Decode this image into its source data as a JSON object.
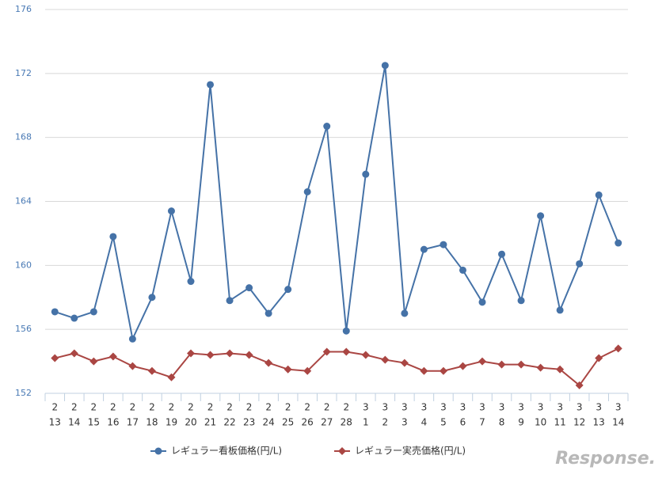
{
  "chart_data": {
    "type": "line",
    "categories": [
      [
        "2",
        "13"
      ],
      [
        "2",
        "14"
      ],
      [
        "2",
        "15"
      ],
      [
        "2",
        "16"
      ],
      [
        "2",
        "17"
      ],
      [
        "2",
        "18"
      ],
      [
        "2",
        "19"
      ],
      [
        "2",
        "20"
      ],
      [
        "2",
        "21"
      ],
      [
        "2",
        "22"
      ],
      [
        "2",
        "23"
      ],
      [
        "2",
        "24"
      ],
      [
        "2",
        "25"
      ],
      [
        "2",
        "26"
      ],
      [
        "2",
        "27"
      ],
      [
        "2",
        "28"
      ],
      [
        "3",
        "1"
      ],
      [
        "3",
        "2"
      ],
      [
        "3",
        "3"
      ],
      [
        "3",
        "4"
      ],
      [
        "3",
        "5"
      ],
      [
        "3",
        "6"
      ],
      [
        "3",
        "7"
      ],
      [
        "3",
        "8"
      ],
      [
        "3",
        "9"
      ],
      [
        "3",
        "10"
      ],
      [
        "3",
        "11"
      ],
      [
        "3",
        "12"
      ],
      [
        "3",
        "13"
      ],
      [
        "3",
        "14"
      ]
    ],
    "series": [
      {
        "name": "レギュラー看板価格(円/L)",
        "color": "#4572a7",
        "marker": "circle",
        "values": [
          157.1,
          156.7,
          157.1,
          161.8,
          155.4,
          158.0,
          163.4,
          159.0,
          171.3,
          157.8,
          158.6,
          157.0,
          158.5,
          164.6,
          168.7,
          155.9,
          165.7,
          172.5,
          157.0,
          161.0,
          161.3,
          159.7,
          157.7,
          160.7,
          157.8,
          163.1,
          157.2,
          160.1,
          164.4,
          161.4
        ]
      },
      {
        "name": "レギュラー実売価格(円/L)",
        "color": "#aa4643",
        "marker": "diamond",
        "values": [
          154.2,
          154.5,
          154.0,
          154.3,
          153.7,
          153.4,
          153.0,
          154.5,
          154.4,
          154.5,
          154.4,
          153.9,
          153.5,
          153.4,
          154.6,
          154.6,
          154.4,
          154.1,
          153.9,
          153.4,
          153.4,
          153.7,
          154.0,
          153.8,
          153.8,
          153.6,
          153.5,
          152.5,
          154.2,
          154.8
        ]
      }
    ],
    "ylim": [
      152,
      176
    ],
    "yticks": [
      152,
      156,
      160,
      164,
      168,
      172,
      176
    ],
    "grid": true,
    "legend": "bottom",
    "watermark": "Response."
  }
}
